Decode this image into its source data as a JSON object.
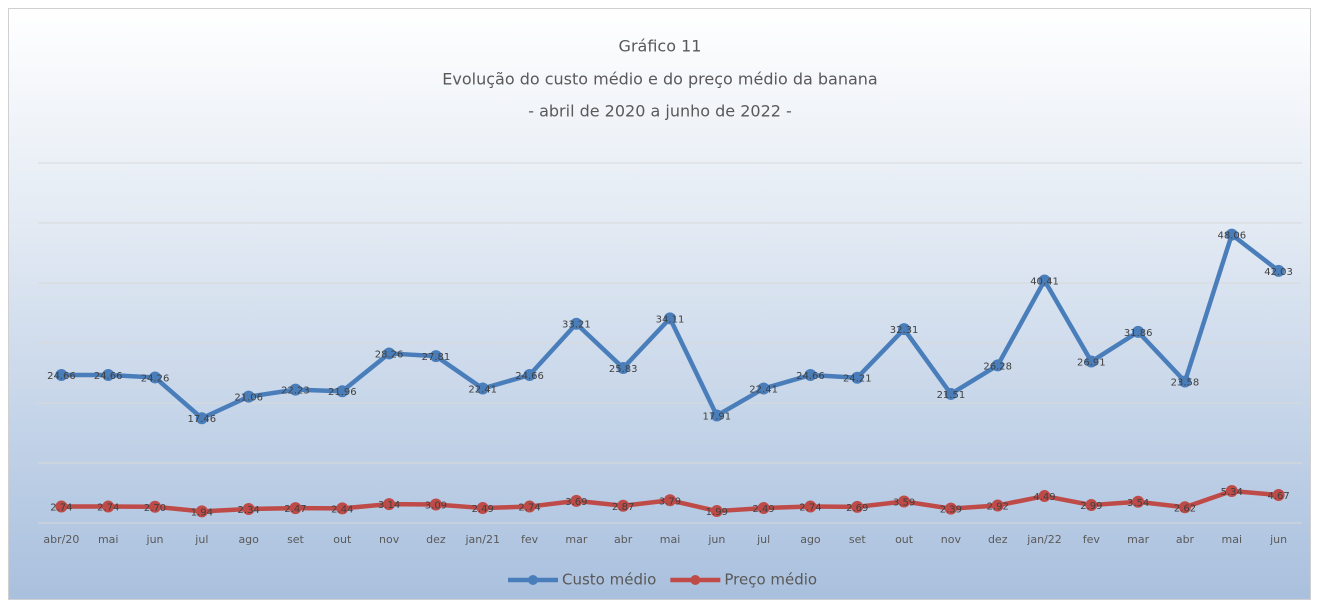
{
  "chart_data": {
    "type": "line",
    "title": "Gráfico 11",
    "subtitle": [
      "Evolução do custo médio e do preço médio da banana",
      "- abril de 2020 a junho de 2022 -"
    ],
    "categories": [
      "abr/20",
      "mai",
      "jun",
      "jul",
      "ago",
      "set",
      "out",
      "nov",
      "dez",
      "jan/21",
      "fev",
      "mar",
      "abr",
      "mai",
      "jun",
      "jul",
      "ago",
      "set",
      "out",
      "nov",
      "dez",
      "jan/22",
      "fev",
      "mar",
      "abr",
      "mai",
      "jun"
    ],
    "series": [
      {
        "name": "Custo médio",
        "color": "#4a7ebb",
        "values": [
          24.66,
          24.66,
          24.26,
          17.46,
          21.06,
          22.23,
          21.96,
          28.26,
          27.81,
          22.41,
          24.66,
          33.21,
          25.83,
          34.11,
          17.91,
          22.41,
          24.66,
          24.21,
          32.31,
          21.51,
          26.28,
          40.41,
          26.91,
          31.86,
          23.58,
          48.06,
          42.03
        ],
        "value_labels": [
          "24.66",
          "24.66",
          "24.26",
          "17.46",
          "21.06",
          "22.23",
          "21.96",
          "28.26",
          "27.81",
          "22.41",
          "24.66",
          "33.21",
          "25.83",
          "34.11",
          "17.91",
          "22.41",
          "24.66",
          "24.21",
          "32.31",
          "21.51",
          "26.28",
          "40.41",
          "26.91",
          "31.86",
          "23.58",
          "48.06",
          "42.03"
        ]
      },
      {
        "name": "Preço médio",
        "color": "#be4b48",
        "values": [
          2.74,
          2.74,
          2.7,
          1.94,
          2.34,
          2.47,
          2.44,
          3.14,
          3.09,
          2.49,
          2.74,
          3.69,
          2.87,
          3.79,
          1.99,
          2.49,
          2.74,
          2.69,
          3.59,
          2.39,
          2.92,
          4.49,
          2.99,
          3.54,
          2.62,
          5.34,
          4.67
        ],
        "value_labels": [
          "2.74",
          "2.74",
          "2.70",
          "1.94",
          "2.34",
          "2.47",
          "2.44",
          "3.14",
          "3.09",
          "2.49",
          "2.74",
          "3.69",
          "2.87",
          "3.79",
          "1.99",
          "2.49",
          "2.74",
          "2.69",
          "3.59",
          "2.39",
          "2.92",
          "4.49",
          "2.99",
          "3.54",
          "2.62",
          "5.34",
          "4.67"
        ]
      }
    ],
    "ylim": [
      0,
      60
    ],
    "yticks": [
      0,
      10,
      20,
      30,
      40,
      50,
      60
    ],
    "grid": true,
    "legend": "bottom"
  }
}
